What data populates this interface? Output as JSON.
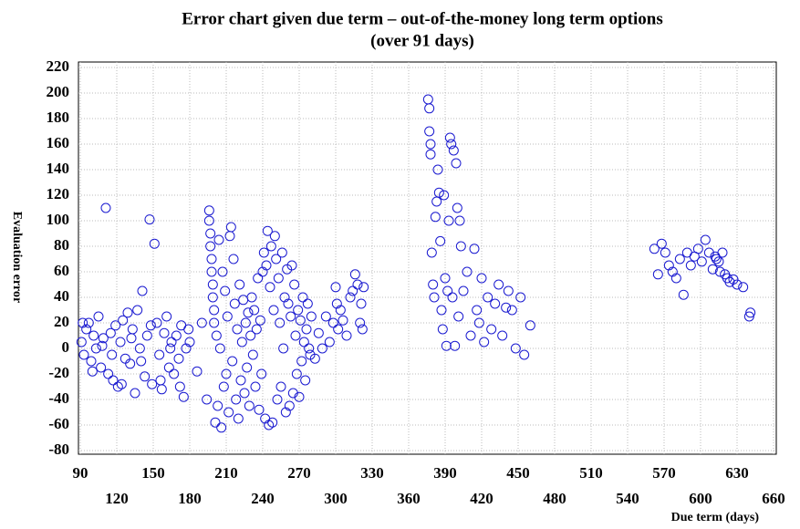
{
  "chart_data": {
    "type": "scatter",
    "title": "Error chart given due term – out-of-the-money long term options",
    "subtitle": "(over 91 days)",
    "x_label": "Due term (days)",
    "y_label": "Evaluation error",
    "xlim": [
      90,
      660
    ],
    "ylim": [
      -80,
      220
    ],
    "xticks": [
      90,
      120,
      150,
      180,
      210,
      240,
      270,
      300,
      330,
      360,
      390,
      420,
      450,
      480,
      510,
      540,
      570,
      600,
      630,
      660
    ],
    "yticks": [
      -80,
      -60,
      -40,
      -20,
      0,
      20,
      40,
      60,
      80,
      100,
      120,
      140,
      160,
      180,
      200,
      220
    ],
    "grid": true,
    "color": "#1a1ad0",
    "x": [
      91,
      93,
      95,
      97,
      99,
      101,
      103,
      105,
      107,
      109,
      111,
      113,
      115,
      117,
      119,
      121,
      123,
      125,
      127,
      129,
      131,
      133,
      135,
      137,
      139,
      141,
      143,
      145,
      147,
      149,
      151,
      153,
      155,
      157,
      159,
      161,
      163,
      165,
      167,
      169,
      171,
      173,
      175,
      177,
      179,
      92,
      100,
      108,
      116,
      124,
      132,
      140,
      148,
      156,
      164,
      172,
      180,
      186,
      190,
      194,
      196,
      196,
      197,
      197,
      198,
      198,
      199,
      199,
      200,
      200,
      201,
      202,
      203,
      204,
      205,
      206,
      207,
      208,
      209,
      210,
      211,
      212,
      213,
      214,
      215,
      216,
      217,
      218,
      219,
      220,
      221,
      222,
      223,
      224,
      225,
      226,
      227,
      228,
      229,
      230,
      231,
      232,
      233,
      234,
      235,
      236,
      237,
      238,
      239,
      240,
      241,
      242,
      243,
      244,
      245,
      246,
      247,
      248,
      249,
      250,
      251,
      252,
      253,
      254,
      255,
      256,
      257,
      258,
      259,
      260,
      261,
      262,
      263,
      264,
      265,
      266,
      267,
      268,
      269,
      270,
      271,
      272,
      273,
      274,
      275,
      276,
      277,
      278,
      279,
      280,
      283,
      286,
      289,
      292,
      295,
      298,
      300,
      301,
      302,
      304,
      306,
      309,
      312,
      314,
      316,
      318,
      320,
      321,
      322,
      323,
      376,
      377,
      377,
      378,
      378,
      379,
      380,
      381,
      382,
      383,
      384,
      385,
      386,
      387,
      388,
      389,
      390,
      391,
      392,
      393,
      394,
      395,
      396,
      397,
      398,
      399,
      400,
      401,
      402,
      403,
      405,
      408,
      411,
      414,
      416,
      418,
      420,
      422,
      425,
      428,
      431,
      434,
      437,
      440,
      442,
      445,
      448,
      452,
      455,
      460,
      562,
      565,
      568,
      571,
      574,
      577,
      580,
      583,
      586,
      589,
      592,
      595,
      598,
      601,
      604,
      607,
      610,
      613,
      616,
      620,
      612,
      615,
      618,
      622,
      624,
      627,
      630,
      635,
      640,
      641
    ],
    "values": [
      5,
      -5,
      15,
      20,
      -10,
      10,
      0,
      25,
      -15,
      8,
      110,
      -20,
      12,
      -25,
      18,
      -30,
      5,
      22,
      -8,
      28,
      -12,
      15,
      -35,
      30,
      0,
      45,
      -22,
      10,
      101,
      -28,
      82,
      20,
      -5,
      -32,
      12,
      25,
      -15,
      5,
      -20,
      10,
      -8,
      18,
      -38,
      0,
      15,
      20,
      -18,
      2,
      -5,
      -28,
      8,
      -10,
      18,
      -25,
      0,
      -30,
      5,
      -18,
      20,
      -40,
      108,
      100,
      90,
      80,
      70,
      60,
      50,
      40,
      30,
      20,
      -58,
      10,
      -45,
      85,
      0,
      -62,
      60,
      -30,
      45,
      -20,
      25,
      -50,
      88,
      95,
      -10,
      70,
      35,
      -40,
      15,
      -55,
      50,
      -25,
      5,
      38,
      -35,
      20,
      -15,
      28,
      -45,
      10,
      40,
      -5,
      30,
      -30,
      15,
      55,
      -48,
      22,
      -20,
      60,
      75,
      -55,
      65,
      92,
      -60,
      48,
      80,
      -58,
      30,
      88,
      70,
      -40,
      55,
      20,
      -30,
      75,
      0,
      40,
      -50,
      62,
      35,
      -45,
      25,
      65,
      -35,
      50,
      10,
      -20,
      30,
      -38,
      22,
      -10,
      40,
      5,
      -25,
      15,
      35,
      0,
      -5,
      25,
      -8,
      12,
      0,
      25,
      5,
      20,
      48,
      35,
      15,
      30,
      22,
      10,
      40,
      45,
      58,
      50,
      20,
      35,
      15,
      48,
      195,
      188,
      170,
      160,
      152,
      75,
      50,
      40,
      103,
      115,
      140,
      122,
      84,
      30,
      15,
      120,
      55,
      2,
      45,
      100,
      165,
      160,
      40,
      155,
      2,
      145,
      110,
      25,
      100,
      80,
      45,
      60,
      10,
      78,
      30,
      20,
      55,
      5,
      40,
      15,
      35,
      50,
      10,
      32,
      45,
      30,
      0,
      40,
      -5,
      18,
      78,
      58,
      82,
      75,
      65,
      60,
      55,
      70,
      42,
      75,
      65,
      72,
      78,
      68,
      85,
      75,
      62,
      70,
      60,
      58,
      72,
      68,
      75,
      55,
      52,
      54,
      50,
      48,
      25,
      28
    ]
  }
}
